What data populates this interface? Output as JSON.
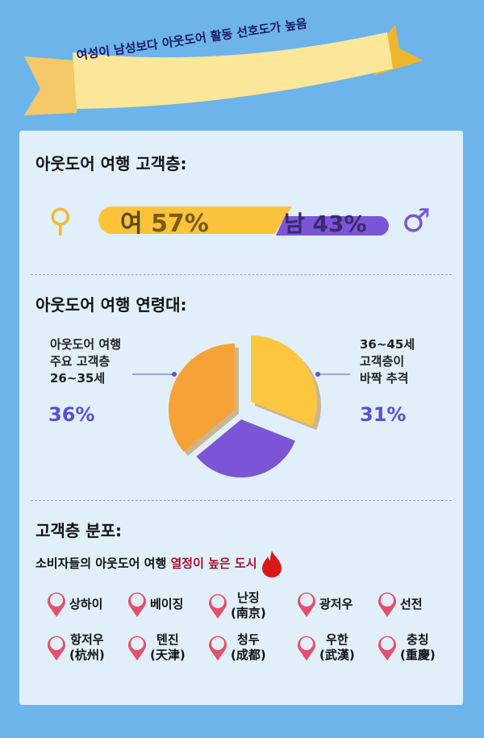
{
  "banner": {
    "text": "여성이 남성보다 아웃도어 활동 선호도가 높음"
  },
  "gender": {
    "title": "아웃도어 여행 고객층:",
    "female_label": "여",
    "female_pct": "57%",
    "male_label": "남",
    "male_pct": "43%",
    "female_value": 57,
    "male_value": 43,
    "female_color": "#fbc33a",
    "male_color": "#7b55d6",
    "female_icon": "female-symbol-icon",
    "male_icon": "male-symbol-icon"
  },
  "age": {
    "title": "아웃도어 여행 연령대:",
    "left_lines": [
      "아웃도어 여행",
      "주요 고객층",
      "26~35세"
    ],
    "left_pct": "36%",
    "right_lines": [
      "36~45세",
      "고객층이",
      "바짝 추격"
    ],
    "right_pct": "31%"
  },
  "chart_data": {
    "type": "pie",
    "slices": [
      {
        "label": "26~35세",
        "value": 36,
        "color": "#f6a236"
      },
      {
        "label": "36~45세",
        "value": 31,
        "color": "#fcc73e"
      },
      {
        "label": "",
        "value": 33,
        "color": "#7b55d6"
      }
    ]
  },
  "distribution": {
    "title": "고객층 분포:",
    "subtitle_prefix": "소비자들의 아웃도어 여행 ",
    "subtitle_highlight": "열정이 높은 도시",
    "accent": "#a3102a",
    "pin_color": "#e5506a",
    "cities": [
      [
        "상하이"
      ],
      [
        "베이징"
      ],
      [
        "난징",
        "(南京)"
      ],
      [
        "광저우"
      ],
      [
        "선전"
      ],
      [
        "항저우",
        "(杭州)"
      ],
      [
        "톈진",
        "(天津)"
      ],
      [
        "청두",
        "(成都)"
      ],
      [
        "우한",
        "(武漢)"
      ],
      [
        "충칭",
        "(重慶)"
      ]
    ]
  }
}
